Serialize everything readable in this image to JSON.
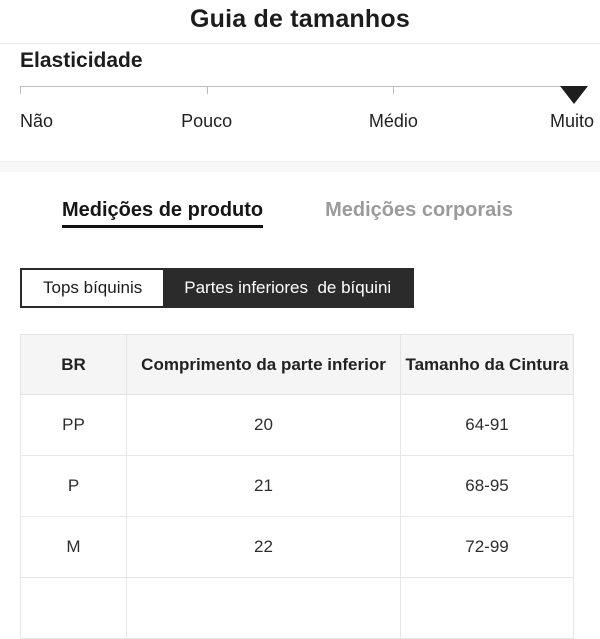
{
  "header": {
    "title": "Guia de tamanhos"
  },
  "elasticity": {
    "label": "Elasticidade",
    "levels": [
      "Não",
      "Pouco",
      "Médio",
      "Muito"
    ],
    "selected": "Muito",
    "marker_icon": "down-triangle"
  },
  "tabs": [
    {
      "label": "Medições de produto",
      "active": true
    },
    {
      "label": "Medições corporais",
      "active": false
    }
  ],
  "segments": [
    {
      "label": "Tops bíquinis",
      "active": true
    },
    {
      "label": "Partes inferiores  de bíquini",
      "active": false
    }
  ],
  "table": {
    "headers": [
      "BR",
      "Comprimento da parte inferior",
      "Tamanho da Cintura"
    ],
    "rows": [
      [
        "PP",
        "20",
        "64-91"
      ],
      [
        "P",
        "21",
        "68-95"
      ],
      [
        "M",
        "22",
        "72-99"
      ]
    ]
  },
  "colors": {
    "accent_dark": "#2b2b2b",
    "inactive_tab_text": "#9b9b9b",
    "table_header_bg": "#f5f5f5",
    "divider_band_bg": "#f7f7f7",
    "table_border": "#e3e3e3",
    "scale_line": "#bdbdbd",
    "marker": "#1d1d1d"
  }
}
